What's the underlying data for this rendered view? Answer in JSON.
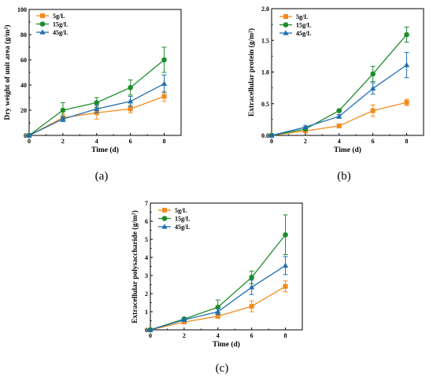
{
  "colors": {
    "5g/L": "#f28a1e",
    "15g/L": "#1e8c2c",
    "45g/L": "#1f6fb2",
    "axis": "#000000"
  },
  "markers": {
    "5g/L": "square",
    "15g/L": "circle",
    "45g/L": "triangle"
  },
  "chart_data": [
    {
      "panel_label": "(a)",
      "type": "line",
      "xlabel": "Time (d)",
      "ylabel": "Dry weight of unit area (g/m²)",
      "xlim": [
        0,
        9
      ],
      "ylim": [
        0,
        100
      ],
      "xticks": [
        0,
        2,
        4,
        6,
        8
      ],
      "yticks": [
        0,
        20,
        40,
        60,
        80,
        100
      ],
      "ytick_labels": [
        "0",
        "20",
        "40",
        "60",
        "80",
        "100"
      ],
      "legend_position": "top-left",
      "x": [
        0,
        2,
        4,
        6,
        8
      ],
      "series": [
        {
          "name": "5g/L",
          "values": [
            0,
            14,
            18,
            21,
            31
          ],
          "errors": [
            0,
            3,
            5,
            3,
            4
          ]
        },
        {
          "name": "15g/L",
          "values": [
            0,
            20,
            26,
            38,
            60
          ],
          "errors": [
            0,
            6,
            4,
            6,
            10
          ]
        },
        {
          "name": "45g/L",
          "values": [
            0,
            13,
            21,
            27,
            41
          ],
          "errors": [
            0,
            2,
            3,
            4,
            7
          ]
        }
      ]
    },
    {
      "panel_label": "(b)",
      "type": "line",
      "xlabel": "Time (d)",
      "ylabel": "Extracellular protein (g/m²)",
      "xlim": [
        0,
        9
      ],
      "ylim": [
        0,
        2
      ],
      "xticks": [
        0,
        2,
        4,
        6,
        8
      ],
      "yticks": [
        0,
        0.5,
        1,
        1.5,
        2
      ],
      "ytick_labels": [
        "0.0",
        "0.5",
        "1.0",
        "1.5",
        "2.0"
      ],
      "legend_position": "top-left",
      "x": [
        0,
        2,
        4,
        6,
        8
      ],
      "series": [
        {
          "name": "5g/L",
          "values": [
            0,
            0.07,
            0.15,
            0.39,
            0.52
          ],
          "errors": [
            0,
            0.02,
            0.03,
            0.09,
            0.05
          ]
        },
        {
          "name": "15g/L",
          "values": [
            0,
            0.1,
            0.39,
            0.97,
            1.59
          ],
          "errors": [
            0,
            0.02,
            0.02,
            0.12,
            0.12
          ]
        },
        {
          "name": "45g/L",
          "values": [
            0,
            0.13,
            0.3,
            0.74,
            1.11
          ],
          "errors": [
            0,
            0.02,
            0.03,
            0.09,
            0.2
          ]
        }
      ]
    },
    {
      "panel_label": "(c)",
      "type": "line",
      "xlabel": "Time (d)",
      "ylabel": "Extracellular polysaccharide (g/m²)",
      "xlim": [
        0,
        9
      ],
      "ylim": [
        0,
        7
      ],
      "xticks": [
        0,
        2,
        4,
        6,
        8
      ],
      "yticks": [
        0,
        1,
        2,
        3,
        4,
        5,
        6,
        7
      ],
      "ytick_labels": [
        "0",
        "1",
        "2",
        "3",
        "4",
        "5",
        "6",
        "7"
      ],
      "legend_position": "top-left",
      "x": [
        0,
        2,
        4,
        6,
        8
      ],
      "series": [
        {
          "name": "5g/L",
          "values": [
            0,
            0.43,
            0.75,
            1.3,
            2.4
          ],
          "errors": [
            0,
            0.05,
            0.1,
            0.3,
            0.3
          ]
        },
        {
          "name": "15g/L",
          "values": [
            0,
            0.6,
            1.25,
            2.9,
            5.25
          ],
          "errors": [
            0,
            0.07,
            0.4,
            0.35,
            1.1
          ]
        },
        {
          "name": "45g/L",
          "values": [
            0,
            0.55,
            1.0,
            2.35,
            3.55
          ],
          "errors": [
            0,
            0.05,
            0.15,
            0.4,
            0.5
          ]
        }
      ]
    }
  ]
}
